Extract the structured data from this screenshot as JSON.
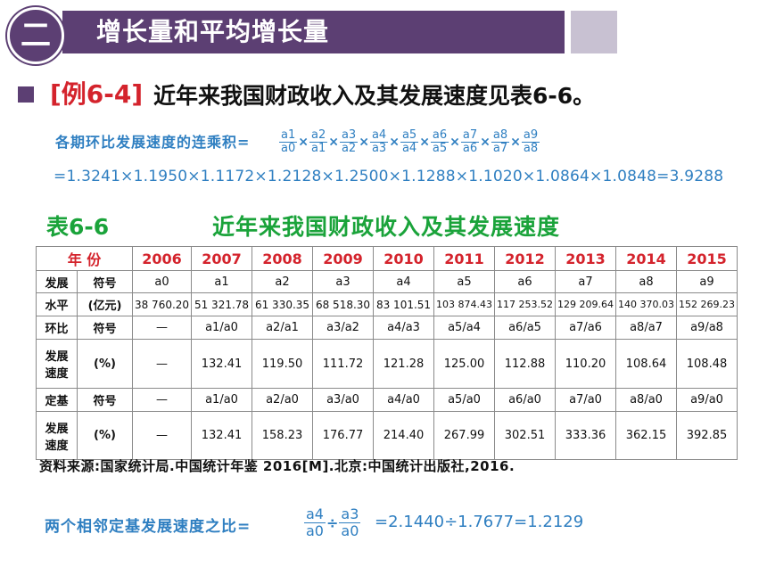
{
  "header": {
    "badge": "二",
    "title": "增长量和平均增长量"
  },
  "example": {
    "tag": "[例6-4]",
    "text": "近年来我国财政收入及其发展速度见表6-6。"
  },
  "formula1": {
    "label": "各期环比发展速度的连乘积=",
    "fractions": [
      {
        "num": "a1",
        "den": "a0"
      },
      {
        "num": "a2",
        "den": "a1"
      },
      {
        "num": "a3",
        "den": "a2"
      },
      {
        "num": "a4",
        "den": "a3"
      },
      {
        "num": "a5",
        "den": "a4"
      },
      {
        "num": "a6",
        "den": "a5"
      },
      {
        "num": "a7",
        "den": "a6"
      },
      {
        "num": "a8",
        "den": "a7"
      },
      {
        "num": "a9",
        "den": "a8"
      }
    ],
    "times": "×",
    "result": "=1.3241×1.1950×1.1172×1.2128×1.2500×1.1288×1.1020×1.0864×1.0848=3.9288"
  },
  "table": {
    "title": "表6-6",
    "subtitle": "近年来我国财政收入及其发展速度",
    "year_label": "年 份",
    "years": [
      "2006",
      "2007",
      "2008",
      "2009",
      "2010",
      "2011",
      "2012",
      "2013",
      "2014",
      "2015"
    ],
    "row_labels": {
      "level_top": "发展",
      "level_bottom": "水平",
      "symbol": "符号",
      "unit_yi": "(亿元)",
      "chain_top": "环比",
      "chain_mid": "发展",
      "chain_bottom": "速度",
      "fixed_top": "定基",
      "fixed_mid": "发展",
      "fixed_bottom": "速度",
      "percent": "(%)"
    },
    "level_symbols": [
      "a0",
      "a1",
      "a2",
      "a3",
      "a4",
      "a5",
      "a6",
      "a7",
      "a8",
      "a9"
    ],
    "level_values": [
      "38 760.20",
      "51 321.78",
      "61 330.35",
      "68 518.30",
      "83 101.51",
      "103 874.43",
      "117 253.52",
      "129 209.64",
      "140 370.03",
      "152 269.23"
    ],
    "chain_symbols": [
      "—",
      "a1/a0",
      "a2/a1",
      "a3/a2",
      "a4/a3",
      "a5/a4",
      "a6/a5",
      "a7/a6",
      "a8/a7",
      "a9/a8"
    ],
    "chain_values": [
      "—",
      "132.41",
      "119.50",
      "111.72",
      "121.28",
      "125.00",
      "112.88",
      "110.20",
      "108.64",
      "108.48"
    ],
    "fixed_symbols": [
      "—",
      "a1/a0",
      "a2/a0",
      "a3/a0",
      "a4/a0",
      "a5/a0",
      "a6/a0",
      "a7/a0",
      "a8/a0",
      "a9/a0"
    ],
    "fixed_values": [
      "—",
      "132.41",
      "158.23",
      "176.77",
      "214.40",
      "267.99",
      "302.51",
      "333.36",
      "362.15",
      "392.85"
    ]
  },
  "source": "资料来源:国家统计局.中国统计年鉴 2016[M].北京:中国统计出版社,2016.",
  "formula2": {
    "label": "两个相邻定基发展速度之比=",
    "frac1": {
      "num": "a4",
      "den": "a0"
    },
    "divide": "÷",
    "frac2": {
      "num": "a3",
      "den": "a0"
    },
    "result": "=2.1440÷1.7677=1.2129"
  }
}
